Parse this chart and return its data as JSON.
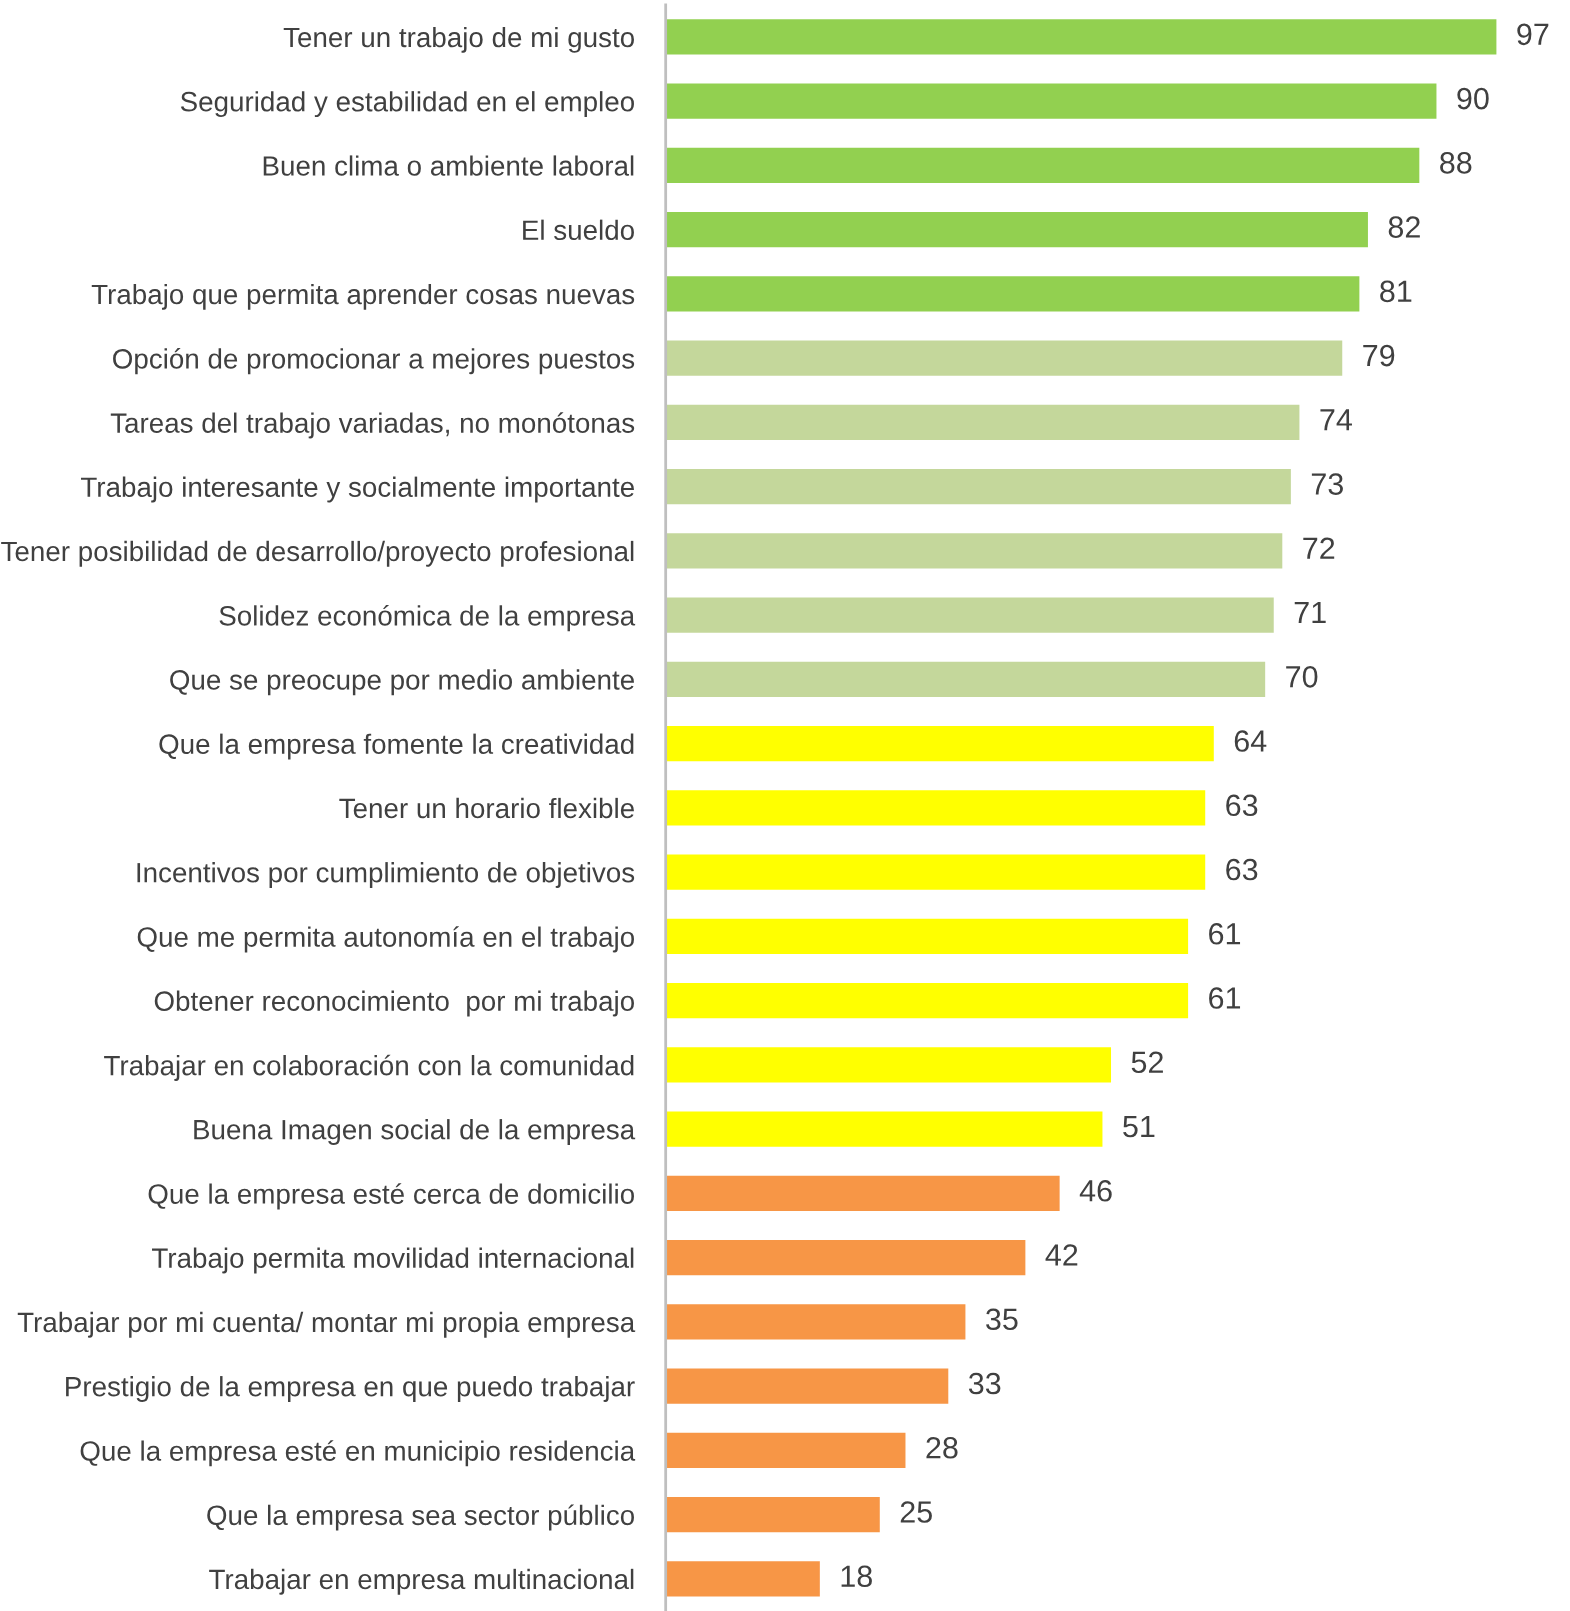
{
  "chart_data": {
    "type": "bar",
    "orientation": "horizontal",
    "data_labels": true,
    "grid": false,
    "legend": false,
    "categories": [
      "Tener un trabajo de mi gusto",
      "Seguridad y estabilidad en el empleo",
      "Buen clima o ambiente laboral",
      "El sueldo",
      "Trabajo que permita aprender cosas nuevas",
      "Opción de promocionar a mejores puestos",
      "Tareas del trabajo variadas, no monótonas",
      "Trabajo interesante y socialmente importante",
      "Tener posibilidad de desarrollo/proyecto profesional",
      "Solidez económica de la empresa",
      "Que se preocupe por medio ambiente",
      "Que la empresa fomente la creatividad",
      "Tener un horario flexible",
      "Incentivos por cumplimiento de objetivos",
      "Que me permita autonomía en el trabajo",
      "Obtener reconocimiento  por mi trabajo",
      "Trabajar en colaboración con la comunidad",
      "Buena Imagen social de la empresa",
      "Que la empresa esté cerca de domicilio",
      "Trabajo permita movilidad internacional",
      "Trabajar por mi cuenta/ montar mi propia empresa",
      "Prestigio de la empresa en que puedo trabajar",
      "Que la empresa esté en municipio residencia",
      "Que la empresa sea sector público",
      "Trabajar en empresa multinacional"
    ],
    "values": [
      97,
      90,
      88,
      82,
      81,
      79,
      74,
      73,
      72,
      71,
      70,
      64,
      63,
      63,
      61,
      61,
      52,
      51,
      46,
      42,
      35,
      33,
      28,
      25,
      18
    ],
    "colors": [
      "#92d050",
      "#92d050",
      "#92d050",
      "#92d050",
      "#92d050",
      "#c4d79b",
      "#c4d79b",
      "#c4d79b",
      "#c4d79b",
      "#c4d79b",
      "#c4d79b",
      "#ffff00",
      "#ffff00",
      "#ffff00",
      "#ffff00",
      "#ffff00",
      "#ffff00",
      "#ffff00",
      "#f79646",
      "#f79646",
      "#f79646",
      "#f79646",
      "#f79646",
      "#f79646",
      "#f79646"
    ]
  }
}
